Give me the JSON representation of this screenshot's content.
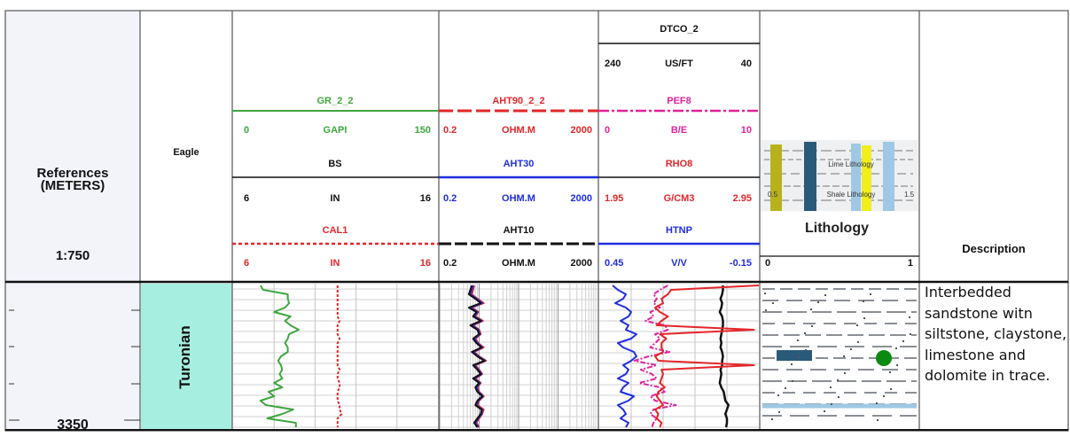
{
  "colors": {
    "green": "#3fa63f",
    "red": "#e3262a",
    "blue": "#1f2de0",
    "black": "#111111",
    "magenta": "#e0239b",
    "formation_fill": "#a6eee0",
    "ref_bg": "#f2f4fa",
    "grid": "#c9c9c9"
  },
  "header": {
    "references": {
      "line1": "References",
      "line2": "(METERS)",
      "scale": "1:750"
    },
    "eagle_label": "Eagle",
    "track1": {
      "curve1": {
        "name": "GR_2_2",
        "left": "0",
        "unit": "GAPI",
        "right": "150"
      },
      "curve2": {
        "name": "BS",
        "left": "6",
        "unit": "IN",
        "right": "16"
      },
      "curve3": {
        "name": "CAL1",
        "left": "6",
        "unit": "IN",
        "right": "16"
      }
    },
    "track2": {
      "curve1": {
        "name": "AHT90_2_2",
        "left": "0.2",
        "unit": "OHM.M",
        "right": "2000"
      },
      "curve2": {
        "name": "AHT30",
        "left": "0.2",
        "unit": "OHM.M",
        "right": "2000"
      },
      "curve3": {
        "name": "AHT10",
        "left": "0.2",
        "unit": "OHM.M",
        "right": "2000"
      }
    },
    "track3": {
      "curve0": {
        "name": "DTCO_2",
        "left": "240",
        "unit": "US/FT",
        "right": "40"
      },
      "curve1": {
        "name": "PEF8",
        "left": "0",
        "unit": "B/E",
        "right": "10"
      },
      "curve2": {
        "name": "RHO8",
        "left": "1.95",
        "unit": "G/CM3",
        "right": "2.95"
      },
      "curve3": {
        "name": "HTNP",
        "left": "0.45",
        "unit": "V/V",
        "right": "-0.15"
      }
    },
    "lithology": {
      "legend_top": "Lime Lithology",
      "legend_bottom": "Shale Lithology",
      "side_left": "0.5",
      "side_right": "1.5",
      "title": "Lithology",
      "scale_left": "0",
      "scale_right": "1"
    },
    "description_title": "Description"
  },
  "body": {
    "depth_label": "3350",
    "formation": "Turonian",
    "description": "Interbedded sandstone witn siltstone, claystone, limestone and dolomite in trace."
  },
  "chart_data": {
    "type": "line",
    "title": "",
    "depth_label": "3350",
    "tracks": [
      {
        "name": "track1",
        "series": [
          {
            "name": "GR_2_2",
            "unit": "GAPI",
            "range": [
              0,
              150
            ],
            "color": "#3fa63f",
            "values": [
              20,
              22,
              40,
              40,
              41,
              38,
              30,
              42,
              38,
              42,
              48,
              41,
              40,
              38,
              40,
              40,
              35,
              33,
              35,
              36,
              34,
              36,
              30,
              36,
              26,
              30,
              20,
              24,
              44,
              36,
              25,
              46,
              46
            ]
          },
          {
            "name": "CAL1",
            "unit": "IN",
            "range": [
              6,
              16
            ],
            "color": "#e3262a",
            "values": [
              11.1,
              11.1,
              11.1,
              11.1,
              11.1,
              11.1,
              11.1,
              11.1,
              11.2,
              11.1,
              11.1,
              11.1,
              11.2,
              11.1,
              11.1,
              11.1,
              11.1,
              11.1,
              11.1,
              11.2,
              11.1,
              11.1,
              11.2,
              11.2,
              11.1,
              11.1,
              11.1,
              11.2,
              11.2,
              11.3,
              11.1,
              11.1,
              11.1
            ]
          }
        ]
      },
      {
        "name": "track2",
        "scale": "log",
        "series": [
          {
            "name": "AHT90_2_2",
            "unit": "OHM.M",
            "range": [
              0.2,
              2000
            ],
            "color": "#e3262a",
            "values": [
              1.5,
              1.4,
              1.3,
              1.8,
              2.6,
              1.3,
              1.9,
              1.6,
              2.5,
              1.4,
              2.0,
              2.2,
              1.6,
              1.9,
              2.6,
              1.5,
              2.0,
              3.0,
              1.6,
              2.0,
              2.4,
              1.6,
              2.2,
              1.8,
              2.0,
              2.6,
              2.0,
              1.8,
              2.6,
              2.4,
              2.0,
              1.7,
              2.0
            ]
          },
          {
            "name": "AHT30",
            "unit": "OHM.M",
            "range": [
              0.2,
              2000
            ],
            "color": "#1f2de0",
            "values": [
              1.4,
              1.3,
              1.2,
              1.7,
              2.4,
              1.2,
              1.8,
              1.5,
              2.3,
              1.3,
              1.9,
              2.1,
              1.5,
              1.8,
              2.4,
              1.4,
              1.9,
              2.8,
              1.5,
              1.9,
              2.3,
              1.5,
              2.1,
              1.7,
              1.9,
              2.5,
              1.9,
              1.7,
              2.4,
              2.3,
              1.9,
              1.6,
              1.9
            ]
          },
          {
            "name": "AHT10",
            "unit": "OHM.M",
            "range": [
              0.2,
              2000
            ],
            "color": "#111111",
            "values": [
              1.3,
              1.2,
              1.1,
              1.6,
              2.2,
              1.1,
              1.7,
              1.4,
              2.2,
              1.2,
              1.8,
              2.0,
              1.4,
              1.7,
              2.3,
              1.3,
              1.8,
              2.7,
              1.4,
              1.8,
              2.2,
              1.4,
              2.0,
              1.6,
              1.8,
              2.4,
              1.8,
              1.6,
              2.3,
              2.2,
              1.8,
              1.5,
              1.8
            ]
          }
        ]
      },
      {
        "name": "track3",
        "series": [
          {
            "name": "DTCO_2",
            "unit": "US/FT",
            "range": [
              240,
              40
            ],
            "color": "#111111",
            "values": [
              85,
              85,
              86,
              88,
              86,
              87,
              89,
              86,
              85,
              85,
              86,
              87,
              88,
              87,
              88,
              86,
              85,
              86,
              86,
              88,
              87,
              88,
              89,
              87,
              84,
              83,
              82,
              78,
              80,
              82,
              80,
              80,
              81
            ]
          },
          {
            "name": "PEF8",
            "unit": "B/E",
            "range": [
              0,
              10
            ],
            "color": "#e0239b",
            "values": [
              4.3,
              3.8,
              3.4,
              3.6,
              3.4,
              3.8,
              3.2,
              3.4,
              2.9,
              4.1,
              4.3,
              3.5,
              3.8,
              3.5,
              3.2,
              4.4,
              3.1,
              2.2,
              3.6,
              2.6,
              3.3,
              3.6,
              2.5,
              3.8,
              4.1,
              3.2,
              3.5,
              4.8,
              3.4,
              3.2,
              3.6,
              3.4,
              3.3
            ]
          },
          {
            "name": "RHO8",
            "unit": "G/CM3",
            "range": [
              1.95,
              2.95
            ],
            "color": "#e3262a",
            "values": [
              2.95,
              2.4,
              2.38,
              2.34,
              2.35,
              2.3,
              2.33,
              2.38,
              2.34,
              2.31,
              2.92,
              2.33,
              2.37,
              2.34,
              2.34,
              2.35,
              2.3,
              2.32,
              2.92,
              2.34,
              2.35,
              2.34,
              2.33,
              2.36,
              2.32,
              2.31,
              2.33,
              2.35,
              2.3,
              2.32,
              2.31,
              2.34,
              2.33
            ]
          },
          {
            "name": "HTNP",
            "unit": "V/V",
            "range": [
              0.45,
              -0.15
            ],
            "color": "#1f2de0",
            "values": [
              0.4,
              0.38,
              0.35,
              0.36,
              0.39,
              0.35,
              0.33,
              0.34,
              0.37,
              0.34,
              0.35,
              0.31,
              0.33,
              0.38,
              0.36,
              0.32,
              0.31,
              0.33,
              0.36,
              0.34,
              0.35,
              0.38,
              0.34,
              0.36,
              0.37,
              0.32,
              0.34,
              0.38,
              0.36,
              0.35,
              0.37,
              0.34,
              0.35
            ]
          }
        ]
      }
    ]
  }
}
